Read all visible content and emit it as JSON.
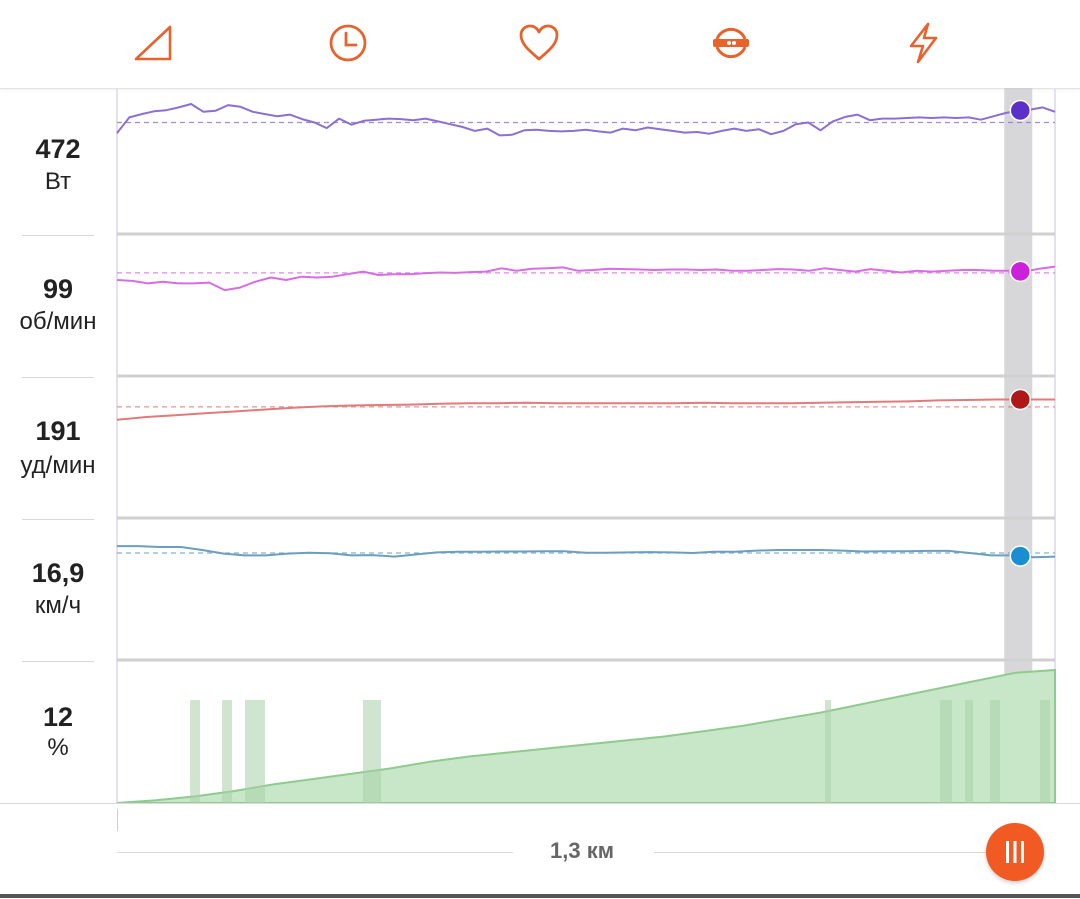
{
  "toolbar": {
    "icons": [
      {
        "name": "gradient-icon"
      },
      {
        "name": "clock-icon"
      },
      {
        "name": "heart-icon"
      },
      {
        "name": "power-meter-icon"
      },
      {
        "name": "lightning-icon"
      }
    ],
    "accent_color": "#e8622c"
  },
  "metrics": [
    {
      "key": "power",
      "value": "472",
      "unit": "Вт",
      "color": "#8c6fd4",
      "dot_color": "#5b2fc9"
    },
    {
      "key": "cadence",
      "value": "99",
      "unit": "об/мин",
      "color": "#d86ce6",
      "dot_color": "#cc20dc"
    },
    {
      "key": "heart_rate",
      "value": "191",
      "unit": "уд/мин",
      "color": "#e27a7a",
      "dot_color": "#b01818"
    },
    {
      "key": "speed",
      "value": "16,9",
      "unit": "км/ч",
      "color": "#6a9fc2",
      "dot_color": "#1a8ed0"
    },
    {
      "key": "grade",
      "value": "12",
      "unit": "%",
      "color": "#9bd09b",
      "dot_color": ""
    }
  ],
  "chart_data": {
    "type": "line",
    "series": [
      {
        "key": "power",
        "values": [
          0.52,
          0.24,
          0.18,
          0.13,
          0.11,
          0.06,
          0.0,
          0.14,
          0.12,
          0.02,
          0.05,
          0.14,
          0.18,
          0.22,
          0.19,
          0.27,
          0.33,
          0.43,
          0.26,
          0.37,
          0.3,
          0.28,
          0.26,
          0.27,
          0.29,
          0.26,
          0.31,
          0.36,
          0.41,
          0.48,
          0.44,
          0.56,
          0.55,
          0.47,
          0.46,
          0.48,
          0.49,
          0.48,
          0.46,
          0.49,
          0.51,
          0.44,
          0.47,
          0.42,
          0.45,
          0.48,
          0.51,
          0.5,
          0.53,
          0.48,
          0.44,
          0.48,
          0.45,
          0.54,
          0.48,
          0.36,
          0.33,
          0.47,
          0.31,
          0.23,
          0.19,
          0.29,
          0.26,
          0.26,
          0.25,
          0.24,
          0.25,
          0.24,
          0.25,
          0.24,
          0.28,
          0.22,
          0.16,
          0.12,
          0.1,
          0.06,
          0.14
        ],
        "mean": 0.33
      },
      {
        "key": "cadence",
        "values": [
          0.62,
          0.64,
          0.7,
          0.66,
          0.7,
          0.7,
          0.68,
          0.86,
          0.8,
          0.66,
          0.56,
          0.62,
          0.54,
          0.56,
          0.54,
          0.48,
          0.42,
          0.5,
          0.48,
          0.48,
          0.46,
          0.44,
          0.45,
          0.43,
          0.42,
          0.34,
          0.4,
          0.35,
          0.34,
          0.32,
          0.4,
          0.38,
          0.35,
          0.36,
          0.37,
          0.38,
          0.37,
          0.37,
          0.38,
          0.37,
          0.4,
          0.4,
          0.38,
          0.36,
          0.37,
          0.4,
          0.34,
          0.38,
          0.42,
          0.36,
          0.4,
          0.44,
          0.4,
          0.42,
          0.4,
          0.38,
          0.38,
          0.4,
          0.4,
          0.42,
          0.35,
          0.3
        ],
        "mean": 0.45
      },
      {
        "key": "heart_rate",
        "values": [
          0.56,
          0.5,
          0.46,
          0.42,
          0.38,
          0.34,
          0.3,
          0.27,
          0.25,
          0.24,
          0.23,
          0.21,
          0.2,
          0.2,
          0.19,
          0.2,
          0.2,
          0.2,
          0.2,
          0.2,
          0.19,
          0.2,
          0.2,
          0.2,
          0.19,
          0.18,
          0.17,
          0.16,
          0.14,
          0.13,
          0.12,
          0.12,
          0.12
        ],
        "mean": 0.28
      },
      {
        "key": "speed",
        "values": [
          0.07,
          0.07,
          0.1,
          0.1,
          0.2,
          0.32,
          0.38,
          0.38,
          0.32,
          0.29,
          0.31,
          0.38,
          0.37,
          0.42,
          0.35,
          0.28,
          0.26,
          0.26,
          0.25,
          0.25,
          0.24,
          0.24,
          0.29,
          0.29,
          0.28,
          0.27,
          0.28,
          0.3,
          0.26,
          0.26,
          0.22,
          0.2,
          0.2,
          0.2,
          0.22,
          0.25,
          0.24,
          0.24,
          0.23,
          0.23,
          0.3,
          0.38,
          0.38,
          0.44,
          0.42
        ],
        "mean": 0.3
      },
      {
        "key": "grade",
        "values": [
          0.0,
          0.02,
          0.05,
          0.09,
          0.14,
          0.18,
          0.22,
          0.26,
          0.31,
          0.35,
          0.38,
          0.41,
          0.44,
          0.47,
          0.5,
          0.54,
          0.58,
          0.63,
          0.68,
          0.74,
          0.8,
          0.86,
          0.92,
          0.98,
          1.0
        ]
      }
    ],
    "cursor_position": 0.963
  },
  "distance": {
    "label": "1,3 км"
  },
  "colors": {
    "cursor_band": "#c9c9cc",
    "row_separator": "#d0d0d0",
    "handle": "#f15a22"
  }
}
